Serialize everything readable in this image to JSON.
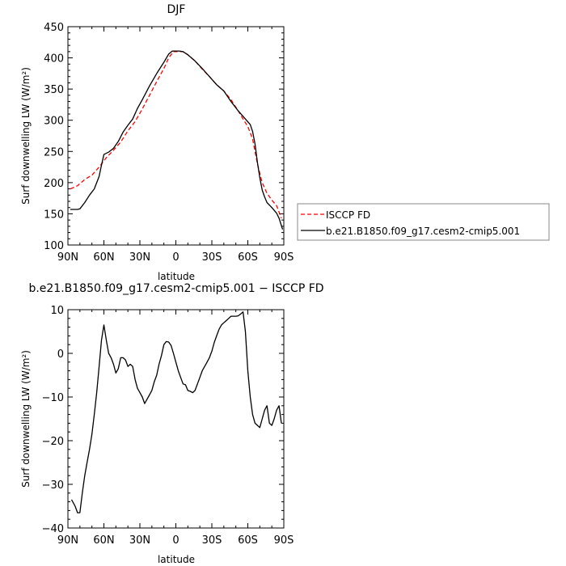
{
  "chart_data": [
    {
      "type": "line",
      "title": "DJF",
      "xlabel": "latitude",
      "ylabel": "Surf downwelling LW (W/m²)",
      "xlim": [
        90,
        -90
      ],
      "ylim": [
        100,
        450
      ],
      "xticks": [
        90,
        60,
        30,
        0,
        -30,
        -60,
        -90
      ],
      "xtick_labels": [
        "90N",
        "60N",
        "30N",
        "0",
        "30S",
        "60S",
        "90S"
      ],
      "yticks": [
        100,
        150,
        200,
        250,
        300,
        350,
        400,
        450
      ],
      "ytick_labels": [
        "100",
        "150",
        "200",
        "250",
        "300",
        "350",
        "400",
        "450"
      ],
      "legend_position": "right",
      "series": [
        {
          "name": "ISCCP FD",
          "color": "#ff0000",
          "dash": "dashed",
          "x": [
            88,
            82,
            76,
            70,
            64,
            58,
            52,
            46,
            40,
            34,
            28,
            22,
            16,
            10,
            6,
            2,
            -2,
            -6,
            -10,
            -16,
            -22,
            -28,
            -34,
            -40,
            -46,
            -52,
            -56,
            -60,
            -64,
            -68,
            -72,
            -76,
            -80,
            -84,
            -88
          ],
          "y": [
            190,
            195,
            205,
            212,
            225,
            240,
            252,
            265,
            283,
            298,
            318,
            340,
            362,
            383,
            400,
            410,
            410,
            410,
            405,
            395,
            382,
            370,
            357,
            347,
            333,
            315,
            302,
            290,
            270,
            230,
            200,
            183,
            172,
            163,
            143
          ]
        },
        {
          "name": "b.e21.B1850.f09_g17.cesm2-cmip5.001",
          "color": "#000000",
          "dash": "solid",
          "x": [
            88,
            82,
            80,
            76,
            72,
            68,
            64,
            62,
            60,
            56,
            52,
            48,
            44,
            40,
            36,
            32,
            28,
            22,
            16,
            10,
            6,
            3,
            0,
            -3,
            -6,
            -10,
            -16,
            -22,
            -28,
            -34,
            -40,
            -46,
            -52,
            -58,
            -62,
            -64,
            -66,
            -68,
            -70,
            -72,
            -74,
            -76,
            -80,
            -84,
            -86,
            -89
          ],
          "y": [
            157,
            157,
            158,
            168,
            180,
            190,
            210,
            228,
            245,
            249,
            255,
            266,
            281,
            292,
            302,
            319,
            333,
            355,
            375,
            393,
            406,
            411,
            411,
            411,
            410,
            405,
            395,
            383,
            370,
            357,
            347,
            330,
            315,
            302,
            293,
            282,
            262,
            232,
            208,
            188,
            177,
            168,
            160,
            151,
            143,
            125
          ]
        }
      ]
    },
    {
      "type": "line",
      "title": "b.e21.B1850.f09_g17.cesm2-cmip5.001 − ISCCP FD",
      "xlabel": "latitude",
      "ylabel": "Surf downwelling LW (W/m²)",
      "xlim": [
        90,
        -90
      ],
      "ylim": [
        -40,
        10
      ],
      "xticks": [
        90,
        60,
        30,
        0,
        -30,
        -60,
        -90
      ],
      "xtick_labels": [
        "90N",
        "60N",
        "30N",
        "0",
        "30S",
        "60S",
        "90S"
      ],
      "yticks": [
        -40,
        -30,
        -20,
        -10,
        0,
        10
      ],
      "ytick_labels": [
        "−40",
        "−30",
        "−20",
        "−10",
        "0",
        "10"
      ],
      "series": [
        {
          "name": "",
          "color": "#000000",
          "dash": "solid",
          "x": [
            87,
            84,
            82,
            80,
            78,
            76,
            74,
            72,
            70,
            68,
            66,
            64,
            62,
            60,
            58,
            56,
            54,
            52,
            50,
            48,
            46,
            44,
            42,
            40,
            38,
            36,
            34,
            32,
            30,
            28,
            26,
            24,
            22,
            20,
            18,
            16,
            14,
            12,
            10,
            8,
            6,
            4,
            2,
            0,
            -2,
            -4,
            -6,
            -8,
            -10,
            -12,
            -14,
            -16,
            -18,
            -20,
            -22,
            -24,
            -26,
            -28,
            -30,
            -32,
            -34,
            -36,
            -38,
            -40,
            -42,
            -44,
            -46,
            -48,
            -50,
            -52,
            -54,
            -56,
            -58,
            -60,
            -62,
            -64,
            -66,
            -68,
            -70,
            -72,
            -74,
            -76,
            -78,
            -80,
            -82,
            -84,
            -86,
            -88
          ],
          "y": [
            -33.5,
            -35,
            -36.5,
            -36.5,
            -32,
            -28,
            -25,
            -22,
            -18.5,
            -14,
            -9,
            -3,
            3,
            6.5,
            3,
            0,
            -1,
            -2.5,
            -4.5,
            -3.5,
            -1,
            -1,
            -1.5,
            -3,
            -2.5,
            -3,
            -6,
            -8,
            -9,
            -10,
            -11.5,
            -10.5,
            -9.5,
            -8.5,
            -6.5,
            -5,
            -2.5,
            -0.5,
            2,
            2.7,
            2.6,
            1.8,
            0,
            -2,
            -4,
            -5.5,
            -7,
            -7.2,
            -8.5,
            -8.7,
            -9,
            -8.5,
            -7,
            -5.5,
            -4,
            -3,
            -2,
            -1,
            0.5,
            2.5,
            4,
            5.5,
            6.5,
            7,
            7.5,
            8,
            8.5,
            8.5,
            8.5,
            8.6,
            9,
            9.5,
            5,
            -4,
            -10,
            -14,
            -16,
            -16.5,
            -17,
            -15,
            -13,
            -12,
            -16,
            -16.5,
            -15,
            -13,
            -12,
            -16
          ]
        }
      ]
    }
  ]
}
